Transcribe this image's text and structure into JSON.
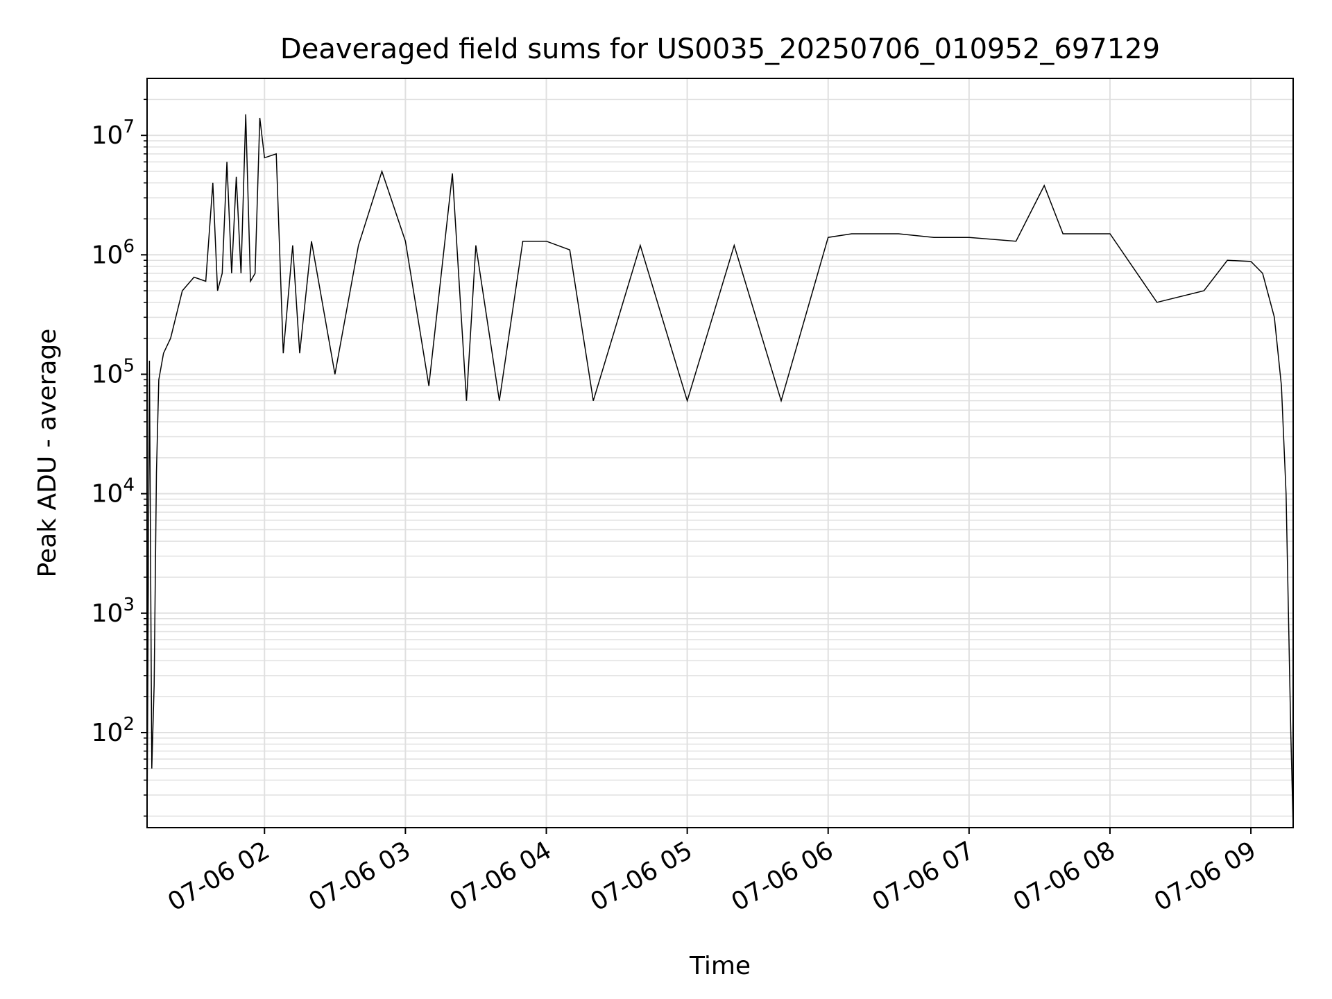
{
  "chart_data": {
    "type": "line",
    "title": "Deaveraged field sums for US0035_20250706_010952_697129",
    "xlabel": "Time",
    "ylabel": "Peak ADU - average",
    "x_scale": "time",
    "y_scale": "log",
    "xlim": [
      "07-06 01:10",
      "07-06 09:18"
    ],
    "ylim": [
      16,
      30000000
    ],
    "x_ticks": [
      "07-06 02",
      "07-06 03",
      "07-06 04",
      "07-06 05",
      "07-06 06",
      "07-06 07",
      "07-06 08",
      "07-06 09"
    ],
    "y_ticks": [
      {
        "value": 100,
        "base": "10",
        "exp": "2"
      },
      {
        "value": 1000,
        "base": "10",
        "exp": "3"
      },
      {
        "value": 10000,
        "base": "10",
        "exp": "4"
      },
      {
        "value": 100000,
        "base": "10",
        "exp": "5"
      },
      {
        "value": 1000000,
        "base": "10",
        "exp": "6"
      },
      {
        "value": 10000000,
        "base": "10",
        "exp": "7"
      }
    ],
    "grid": true,
    "line_color": "#000000",
    "grid_color": "#e0e0e0",
    "series": [
      {
        "x": [
          "07-06 01:10",
          "07-06 01:11",
          "07-06 01:12",
          "07-06 01:13",
          "07-06 01:14",
          "07-06 01:15",
          "07-06 01:17",
          "07-06 01:20",
          "07-06 01:25",
          "07-06 01:30",
          "07-06 01:35",
          "07-06 01:38",
          "07-06 01:40",
          "07-06 01:42",
          "07-06 01:44",
          "07-06 01:46",
          "07-06 01:48",
          "07-06 01:50",
          "07-06 01:52",
          "07-06 01:54",
          "07-06 01:56",
          "07-06 01:58",
          "07-06 02:00",
          "07-06 02:05",
          "07-06 02:08",
          "07-06 02:12",
          "07-06 02:15",
          "07-06 02:20",
          "07-06 02:30",
          "07-06 02:40",
          "07-06 02:50",
          "07-06 03:00",
          "07-06 03:10",
          "07-06 03:20",
          "07-06 03:26",
          "07-06 03:30",
          "07-06 03:40",
          "07-06 03:50",
          "07-06 04:00",
          "07-06 04:10",
          "07-06 04:20",
          "07-06 04:40",
          "07-06 05:00",
          "07-06 05:20",
          "07-06 05:40",
          "07-06 06:00",
          "07-06 06:10",
          "07-06 06:30",
          "07-06 06:45",
          "07-06 07:00",
          "07-06 07:20",
          "07-06 07:32",
          "07-06 07:40",
          "07-06 08:00",
          "07-06 08:20",
          "07-06 08:40",
          "07-06 08:50",
          "07-06 09:00",
          "07-06 09:05",
          "07-06 09:10",
          "07-06 09:13",
          "07-06 09:15",
          "07-06 09:17",
          "07-06 09:18"
        ],
        "y": [
          16,
          130000,
          50,
          250,
          15000,
          90000,
          150000,
          200000,
          500000,
          650000,
          600000,
          4000000,
          500000,
          700000,
          6000000,
          700000,
          4500000,
          700000,
          15000000,
          600000,
          700000,
          14000000,
          6500000,
          7000000,
          150000,
          1200000,
          150000,
          1300000,
          100000,
          1200000,
          5000000,
          1300000,
          80000,
          4800000,
          60000,
          1200000,
          60000,
          1300000,
          1300000,
          1100000,
          60000,
          1200000,
          60000,
          1200000,
          60000,
          1400000,
          1500000,
          1500000,
          1400000,
          1400000,
          1300000,
          3800000,
          1500000,
          1500000,
          400000,
          500000,
          900000,
          880000,
          700000,
          300000,
          80000,
          10000,
          100,
          16
        ]
      }
    ]
  }
}
